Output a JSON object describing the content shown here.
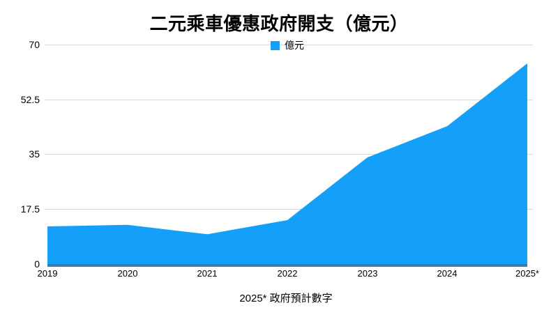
{
  "chart_data": {
    "type": "area",
    "title": "二元乘車優惠政府開支（億元）",
    "legend_label": "億元",
    "legend_position": "top-center",
    "categories": [
      "2019",
      "2020",
      "2021",
      "2022",
      "2023",
      "2024",
      "2025*"
    ],
    "values": [
      12,
      12.5,
      9.5,
      14,
      34,
      44,
      64
    ],
    "series": [
      {
        "name": "億元",
        "values": [
          12,
          12.5,
          9.5,
          14,
          34,
          44,
          64
        ]
      }
    ],
    "y_tick_labels": [
      "70",
      "52.5",
      "35",
      "17.5",
      "0"
    ],
    "ylim": [
      0,
      70
    ],
    "xlabel": "",
    "ylabel": "",
    "grid": "horizontal-only",
    "footnote": "2025* 政府預計數字",
    "colors": {
      "series": "#149ff8",
      "axis_line": "#47789c",
      "gridline": "#d9d9d9",
      "text": "#000000",
      "background": "#ffffff"
    }
  }
}
